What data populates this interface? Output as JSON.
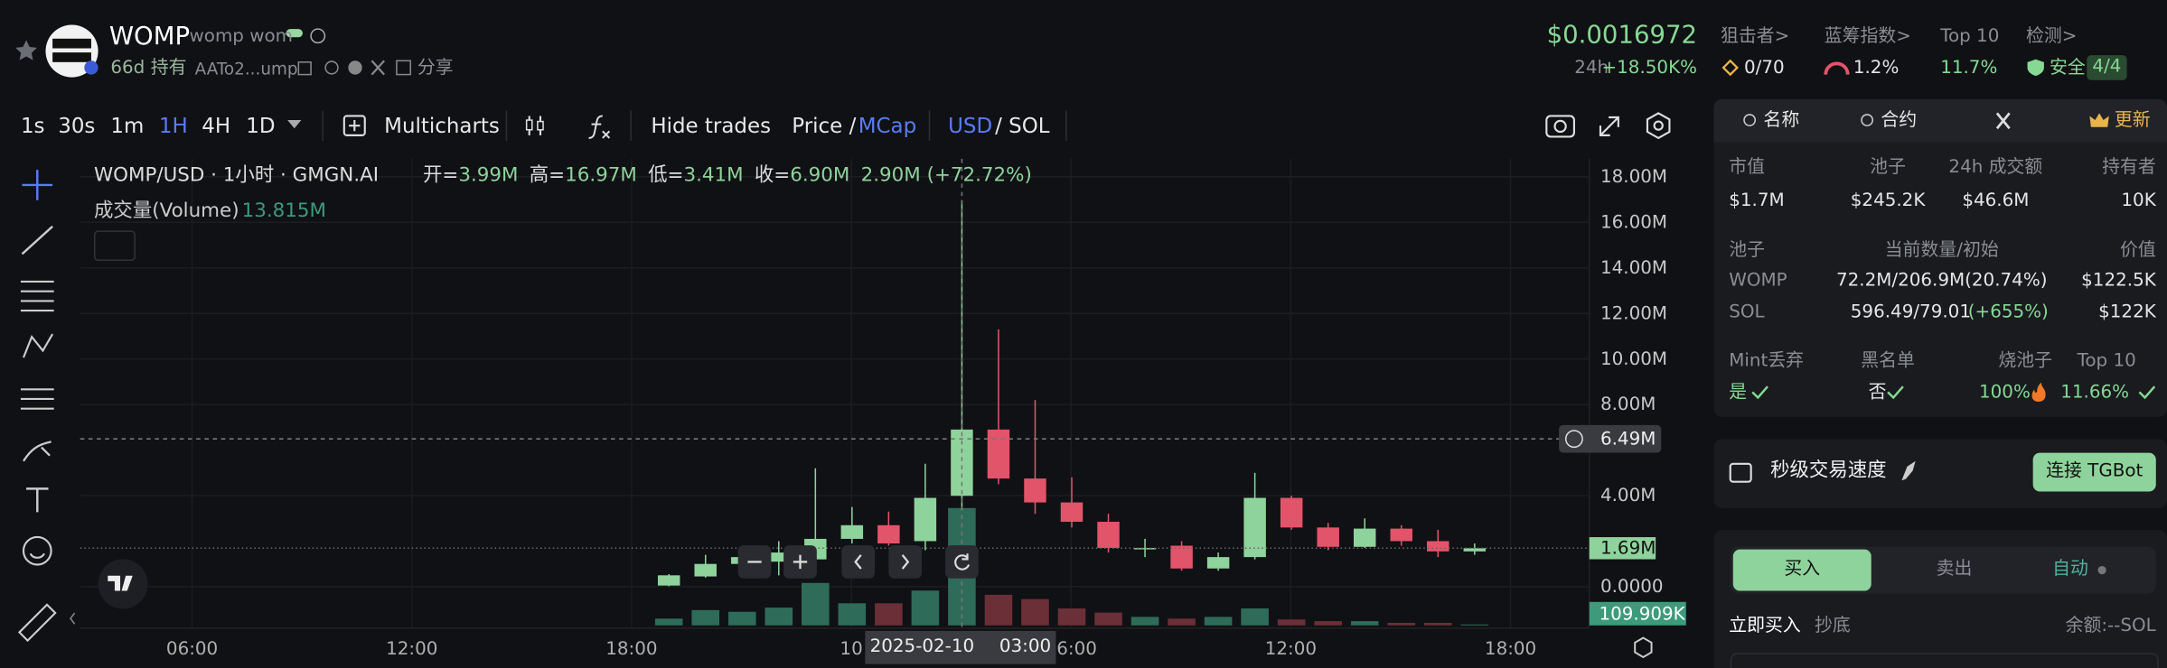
{
  "header": {
    "name": "WOMP",
    "symbol": "womp wom",
    "age": "66d",
    "holding": "持有",
    "address": "AATo2...ump",
    "share": "分享",
    "price": "$0.0016972",
    "change_period": "24h",
    "change": "+18.50K%",
    "stats": [
      {
        "label": "狙击者>",
        "value": "0/70"
      },
      {
        "label": "蓝筹指数>",
        "value": "1.2%"
      },
      {
        "label": "Top 10",
        "value": "11.7%"
      },
      {
        "label": "检测>",
        "value": "安全",
        "badge": "4/4"
      }
    ]
  },
  "toolbar": {
    "intervals": [
      "1s",
      "30s",
      "1m",
      "1H",
      "4H",
      "1D"
    ],
    "multicharts": "Multicharts",
    "hide_trades": "Hide trades",
    "price": "Price /",
    "mcap": "MCap",
    "usd": "USD",
    "sol": "/ SOL"
  },
  "chart_data": {
    "type": "candlestick",
    "title": "WOMP/USD · 1小时 · GMGN.AI",
    "ohlc": [
      {
        "label": "开=",
        "value": "3.99M"
      },
      {
        "label": "高=",
        "value": "16.97M"
      },
      {
        "label": "低=",
        "value": "3.41M"
      },
      {
        "label": "收=",
        "value": "6.90M"
      }
    ],
    "change": "2.90M (+72.72%)",
    "volume_label": "成交量(Volume)",
    "volume_value": "13.815M",
    "open": [
      50000,
      450000,
      1000000,
      1100000,
      1200000,
      2100000,
      2700000,
      2000000,
      3990000,
      6900000,
      4750000,
      3700000,
      2850000,
      1700000,
      1800000,
      800000,
      1300000,
      3900000,
      2600000,
      1750000,
      2550000,
      2000000,
      1550000
    ],
    "high": [
      550000,
      1400000,
      1600000,
      2000000,
      5200000,
      3500000,
      3300000,
      5400000,
      16970000,
      11300000,
      8200000,
      4800000,
      3200000,
      2100000,
      2000000,
      1500000,
      5000000,
      4000000,
      2800000,
      3000000,
      2700000,
      2500000,
      1900000
    ],
    "low": [
      20000,
      400000,
      900000,
      500000,
      1000000,
      1900000,
      1800000,
      1600000,
      3410000,
      4500000,
      3200000,
      2600000,
      1500000,
      1300000,
      700000,
      700000,
      1200000,
      2500000,
      1600000,
      1700000,
      1800000,
      1300000,
      1400000
    ],
    "close": [
      500000,
      1000000,
      1300000,
      1500000,
      2100000,
      2700000,
      1900000,
      3900000,
      6900000,
      4750000,
      3700000,
      2850000,
      1700000,
      1700000,
      800000,
      1300000,
      3900000,
      2600000,
      1750000,
      2550000,
      2000000,
      1550000,
      1690000
    ],
    "volume": [
      800000,
      1800000,
      1600000,
      2100000,
      5000000,
      2600000,
      2600000,
      4100000,
      13815000,
      3600000,
      3100000,
      2000000,
      1500000,
      1000000,
      800000,
      1000000,
      2000000,
      700000,
      500000,
      500000,
      300000,
      300000,
      109909
    ],
    "up_color": "#8ed39b",
    "down_color": "#e2546a",
    "volume_up_color": "#2e6b58",
    "volume_down_color": "#6b2f38",
    "ylim": [
      -1820000,
      18790000
    ],
    "yticks": [
      {
        "value": 0,
        "label": "0.0000"
      },
      {
        "value": 4000000,
        "label": "4.00M"
      },
      {
        "value": 8000000,
        "label": "8.00M"
      },
      {
        "value": 10000000,
        "label": "10.00M"
      },
      {
        "value": 12000000,
        "label": "12.00M"
      },
      {
        "value": 14000000,
        "label": "14.00M"
      },
      {
        "value": 16000000,
        "label": "16.00M"
      },
      {
        "value": 18000000,
        "label": "18.00M"
      }
    ],
    "xticks": [
      "06:00",
      "12:00",
      "18:00",
      "10",
      "06:00",
      "12:00",
      "18:00"
    ],
    "crosshair": {
      "value": 6490000,
      "label": "6.49M"
    },
    "crosshair_time": "2025-02-10 03:00",
    "last_price": {
      "value": 1690000,
      "label": "1.69M"
    },
    "last_volume_label": "109.909K",
    "grid": true
  },
  "panel": {
    "tabs": [
      "名称",
      "合约",
      "更新"
    ],
    "stats": [
      {
        "label": "市值",
        "value": "$1.7M"
      },
      {
        "label": "池子",
        "value": "$245.2K"
      },
      {
        "label": "24h 成交额",
        "value": "$46.6M"
      },
      {
        "label": "持有者",
        "value": "10K"
      }
    ],
    "pool_headers": [
      "池子",
      "当前数量/初始",
      "价值"
    ],
    "pool_rows": [
      {
        "token": "WOMP",
        "amount": "72.2M/206.9M(20.74%)",
        "value": "$122.5K"
      },
      {
        "token": "SOL",
        "amount": "596.49/79.01",
        "change": "(+655%)",
        "value": "$122K"
      }
    ],
    "checks": [
      {
        "label": "Mint丢弃",
        "value": "是"
      },
      {
        "label": "黑名单",
        "value": "否"
      },
      {
        "label": "烧池子",
        "value": "100%"
      },
      {
        "label": "Top 10",
        "value": "11.66%"
      }
    ],
    "speed": "秒级交易速度",
    "tg_button": "连接 TGBot",
    "trade": {
      "buy": "买入",
      "sell": "卖出",
      "auto": "自动",
      "buy_now": "立即买入",
      "dip": "抄底",
      "balance": "余额:--SOL"
    }
  }
}
